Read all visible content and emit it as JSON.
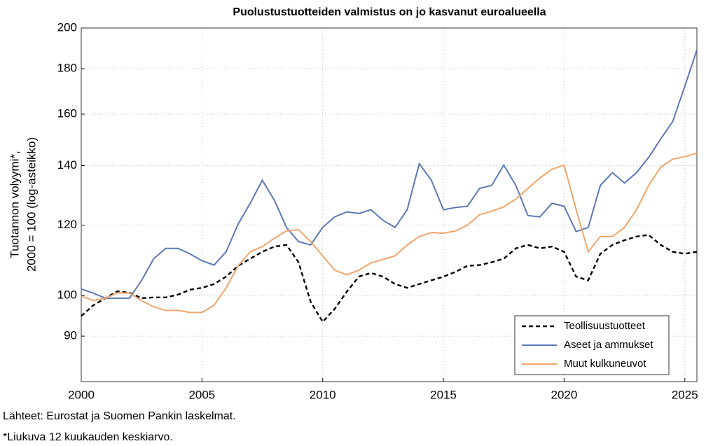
{
  "chart_data": {
    "type": "line",
    "title": "Puolustustuotteiden valmistus on jo kasvanut euroalueella",
    "ylabel": [
      "Tuotannon volyymi*,",
      "2000 = 100 (log-asteikko)"
    ],
    "notes": [
      "Lähteet: Eurostat ja Suomen Pankin laskelmat.",
      "*Liukuva 12 kuukauden keskiarvo."
    ],
    "log_scale": true,
    "grid": true,
    "legend": "lower right",
    "xlim": [
      2000,
      2025.5
    ],
    "xticks": [
      2000,
      2005,
      2010,
      2015,
      2020,
      2025
    ],
    "ylim": [
      80,
      200
    ],
    "yticks": [
      90,
      100,
      120,
      140,
      160,
      180,
      200
    ],
    "x": [
      2000,
      2000.5,
      2001,
      2001.5,
      2002,
      2002.5,
      2003,
      2003.5,
      2004,
      2004.5,
      2005,
      2005.5,
      2006,
      2006.5,
      2007,
      2007.5,
      2008,
      2008.5,
      2009,
      2009.5,
      2010,
      2010.5,
      2011,
      2011.5,
      2012,
      2012.5,
      2013,
      2013.5,
      2014,
      2014.5,
      2015,
      2015.5,
      2016,
      2016.5,
      2017,
      2017.5,
      2018,
      2018.5,
      2019,
      2019.5,
      2020,
      2020.5,
      2021,
      2021.5,
      2022,
      2022.5,
      2023,
      2023.5,
      2024,
      2024.5,
      2025,
      2025.5
    ],
    "series": [
      {
        "name": "Teollisuustuotteet",
        "color": "#000000",
        "dashed": true,
        "values": [
          94.8,
          97.5,
          99.3,
          101.1,
          100.7,
          99.3,
          99.5,
          99.5,
          100.2,
          101.5,
          102,
          103,
          105,
          108,
          110,
          112,
          113.5,
          114,
          109,
          98.4,
          93.4,
          96.6,
          101,
          105,
          106,
          105,
          103,
          102,
          103,
          104,
          105,
          106.3,
          108,
          108.2,
          109,
          110,
          113,
          114,
          113,
          113.5,
          112,
          105,
          104,
          111.4,
          114,
          115.4,
          116.5,
          117,
          114,
          112,
          111.4,
          112
        ]
      },
      {
        "name": "Aseet ja ammukset",
        "color": "#5b78b8",
        "dashed": false,
        "values": [
          101.7,
          100.6,
          99.3,
          99.3,
          99.3,
          104,
          110,
          113,
          113,
          111.4,
          109.4,
          108.2,
          112,
          120.4,
          127,
          134.8,
          128,
          119.3,
          115,
          114,
          119.3,
          122.6,
          124.2,
          123.7,
          124.9,
          121.5,
          119.3,
          124.9,
          140.7,
          134.8,
          124.9,
          125.6,
          126,
          132,
          133,
          140.2,
          133,
          123,
          122.6,
          127,
          126,
          118,
          119.3,
          133,
          137.5,
          133.8,
          137.5,
          143,
          150,
          157,
          172,
          189
        ]
      },
      {
        "name": "Muut kulkuneuvot",
        "color": "#f0a56a",
        "dashed": false,
        "values": [
          99.8,
          98.7,
          99.3,
          100.7,
          100.6,
          98.7,
          97.1,
          96.2,
          96.2,
          95.7,
          95.7,
          97.5,
          102,
          108,
          112,
          113.5,
          116,
          118.2,
          118.6,
          115,
          110.8,
          106.8,
          105.5,
          106.8,
          108.8,
          109.8,
          110.8,
          114,
          116.5,
          117.7,
          117.5,
          118.2,
          120,
          123.3,
          124.4,
          125.8,
          128.4,
          132,
          135.6,
          138.7,
          140.2,
          124.9,
          112,
          116.5,
          116.5,
          119.3,
          124.9,
          133,
          139.4,
          142.4,
          143.3,
          144.6
        ]
      }
    ]
  }
}
